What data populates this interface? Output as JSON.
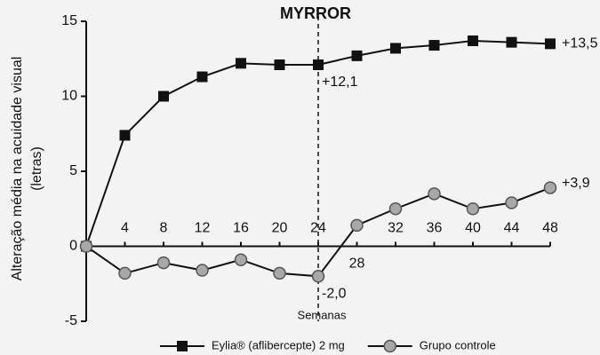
{
  "chart_data": {
    "type": "line",
    "title": "MYRROR",
    "y_label": "Alteração média na acuidade visual (letras)",
    "x_label": "Semanas",
    "x": [
      0,
      4,
      8,
      12,
      16,
      20,
      24,
      28,
      32,
      36,
      40,
      44,
      48
    ],
    "series": [
      {
        "name": "Eylia® (aflibercepte) 2 mg",
        "color": "#111111",
        "marker": "square",
        "values": [
          0,
          7.4,
          10,
          11.3,
          12.2,
          12.1,
          12.1,
          12.7,
          13.2,
          13.4,
          13.7,
          13.6,
          13.5
        ],
        "value_labels": [
          null,
          null,
          null,
          null,
          null,
          null,
          "+12,1",
          null,
          null,
          null,
          null,
          null,
          "+13,5"
        ]
      },
      {
        "name": "Grupo controle",
        "color": "#a8a8a8",
        "marker": "circle",
        "values": [
          0,
          -1.8,
          -1.1,
          -1.6,
          -0.9,
          -1.8,
          -2.0,
          1.4,
          2.5,
          3.5,
          2.5,
          2.9,
          3.9
        ],
        "value_labels": [
          null,
          null,
          null,
          null,
          null,
          null,
          "-2,0",
          null,
          null,
          null,
          null,
          null,
          "+3,9"
        ]
      }
    ],
    "xlim": [
      0,
      48
    ],
    "xticks": [
      4,
      8,
      12,
      16,
      20,
      24,
      28,
      32,
      36,
      40,
      44,
      48
    ],
    "ylim": [
      -5,
      15
    ],
    "yticks": [
      -5,
      0,
      5,
      10,
      15
    ],
    "vline": 24,
    "legend": "bottom"
  }
}
